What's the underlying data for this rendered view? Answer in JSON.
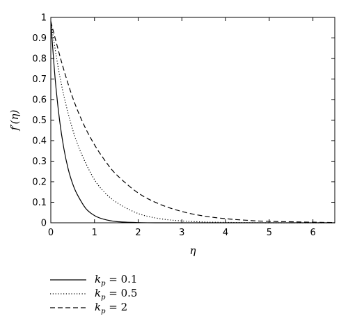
{
  "chart_data": {
    "type": "line",
    "title": "",
    "xlabel": "η",
    "ylabel": "f′(η)",
    "xlim": [
      0,
      6.5
    ],
    "ylim": [
      0,
      1
    ],
    "xticks": [
      "0",
      "1",
      "2",
      "3",
      "4",
      "5",
      "6"
    ],
    "yticks": [
      "0",
      "0.1",
      "0.2",
      "0.3",
      "0.4",
      "0.5",
      "0.6",
      "0.7",
      "0.8",
      "0.9",
      "1"
    ],
    "grid": false,
    "legend_position": "below",
    "series": [
      {
        "name": "k_p = 0.1",
        "style": "solid",
        "color": "#000000",
        "x": [
          0,
          0.1,
          0.2,
          0.3,
          0.4,
          0.5,
          0.6,
          0.8,
          1.0,
          1.2,
          1.5,
          2.0,
          2.5,
          3.0,
          4.0,
          5.0,
          6.5
        ],
        "y": [
          0.98,
          0.7,
          0.5,
          0.36,
          0.26,
          0.19,
          0.14,
          0.07,
          0.035,
          0.018,
          0.006,
          0.001,
          0.0,
          0.0,
          0.0,
          0.0,
          0.0
        ]
      },
      {
        "name": "k_p = 0.5",
        "style": "dotted",
        "color": "#000000",
        "x": [
          0,
          0.2,
          0.4,
          0.6,
          0.8,
          1.0,
          1.2,
          1.5,
          2.0,
          2.5,
          3.0,
          3.5,
          4.0,
          5.0,
          6.5
        ],
        "y": [
          0.98,
          0.72,
          0.53,
          0.39,
          0.29,
          0.21,
          0.155,
          0.1,
          0.045,
          0.02,
          0.009,
          0.004,
          0.002,
          0.0,
          0.0
        ]
      },
      {
        "name": "k_p = 2",
        "style": "dashed",
        "color": "#000000",
        "x": [
          0,
          0.25,
          0.5,
          0.75,
          1.0,
          1.25,
          1.5,
          2.0,
          2.5,
          3.0,
          3.5,
          4.0,
          4.5,
          5.0,
          6.5
        ],
        "y": [
          0.98,
          0.78,
          0.61,
          0.48,
          0.38,
          0.3,
          0.235,
          0.145,
          0.09,
          0.055,
          0.033,
          0.02,
          0.012,
          0.007,
          0.001
        ]
      }
    ],
    "legend": [
      {
        "var": "k",
        "sub": "p",
        "rest": " = 0.1",
        "style": "solid"
      },
      {
        "var": "k",
        "sub": "p",
        "rest": " = 0.5",
        "style": "dotted"
      },
      {
        "var": "k",
        "sub": "p",
        "rest": " = 2",
        "style": "dashed"
      }
    ]
  }
}
